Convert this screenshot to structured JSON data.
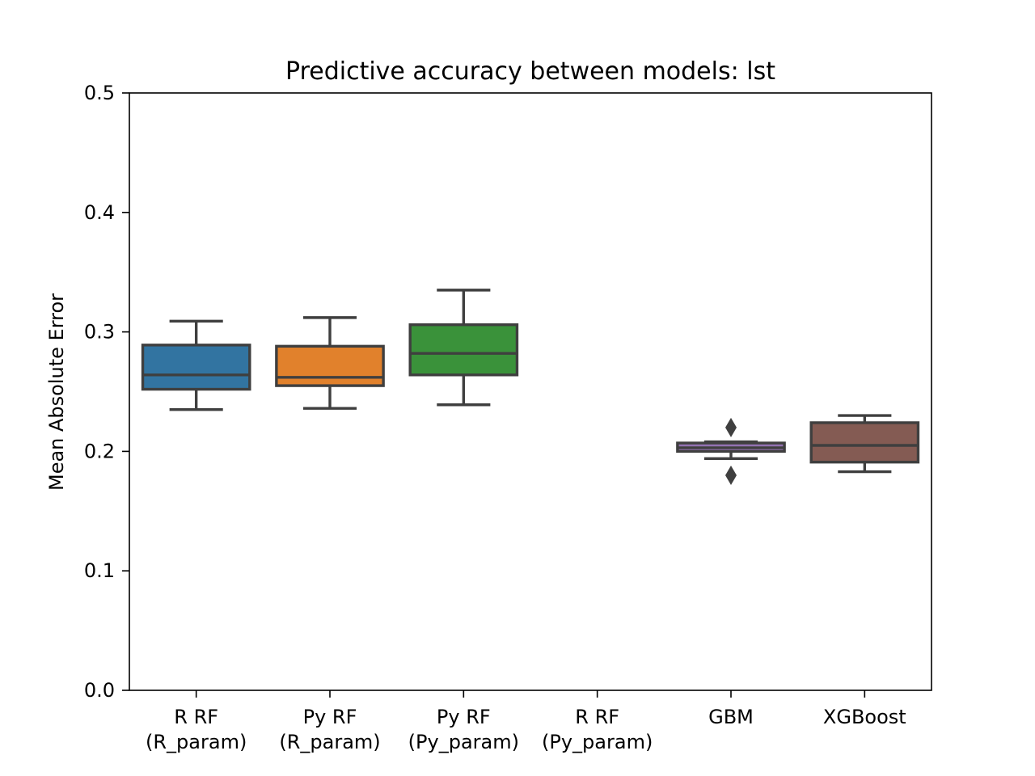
{
  "chart_data": {
    "type": "box",
    "title": "Predictive accuracy between models: lst",
    "xlabel": "",
    "ylabel": "Mean Absolute Error",
    "ylim": [
      0.0,
      0.5
    ],
    "yticks": [
      {
        "value": 0.0,
        "label": "0.0"
      },
      {
        "value": 0.1,
        "label": "0.1"
      },
      {
        "value": 0.2,
        "label": "0.2"
      },
      {
        "value": 0.3,
        "label": "0.3"
      },
      {
        "value": 0.4,
        "label": "0.4"
      },
      {
        "value": 0.5,
        "label": "0.5"
      }
    ],
    "grid": false,
    "categories": [
      {
        "lines": [
          "R RF",
          "(R_param)"
        ],
        "color": "#3274a1",
        "whisker_low": 0.235,
        "q1": 0.252,
        "median": 0.264,
        "q3": 0.289,
        "whisker_high": 0.309,
        "fliers": []
      },
      {
        "lines": [
          "Py RF",
          "(R_param)"
        ],
        "color": "#e1812c",
        "whisker_low": 0.236,
        "q1": 0.255,
        "median": 0.262,
        "q3": 0.288,
        "whisker_high": 0.312,
        "fliers": []
      },
      {
        "lines": [
          "Py RF",
          "(Py_param)"
        ],
        "color": "#3a923a",
        "whisker_low": 0.239,
        "q1": 0.264,
        "median": 0.282,
        "q3": 0.306,
        "whisker_high": 0.335,
        "fliers": []
      },
      {
        "lines": [
          "R RF",
          "(Py_param)"
        ],
        "color": "#c03d3e",
        "whisker_low": null,
        "q1": null,
        "median": null,
        "q3": null,
        "whisker_high": null,
        "fliers": []
      },
      {
        "lines": [
          "GBM"
        ],
        "color": "#9372b2",
        "whisker_low": 0.194,
        "q1": 0.2,
        "median": 0.203,
        "q3": 0.207,
        "whisker_high": 0.208,
        "fliers": [
          0.22,
          0.18
        ]
      },
      {
        "lines": [
          "XGBoost"
        ],
        "color": "#845b53",
        "whisker_low": 0.183,
        "q1": 0.191,
        "median": 0.205,
        "q3": 0.224,
        "whisker_high": 0.23,
        "fliers": []
      }
    ]
  }
}
